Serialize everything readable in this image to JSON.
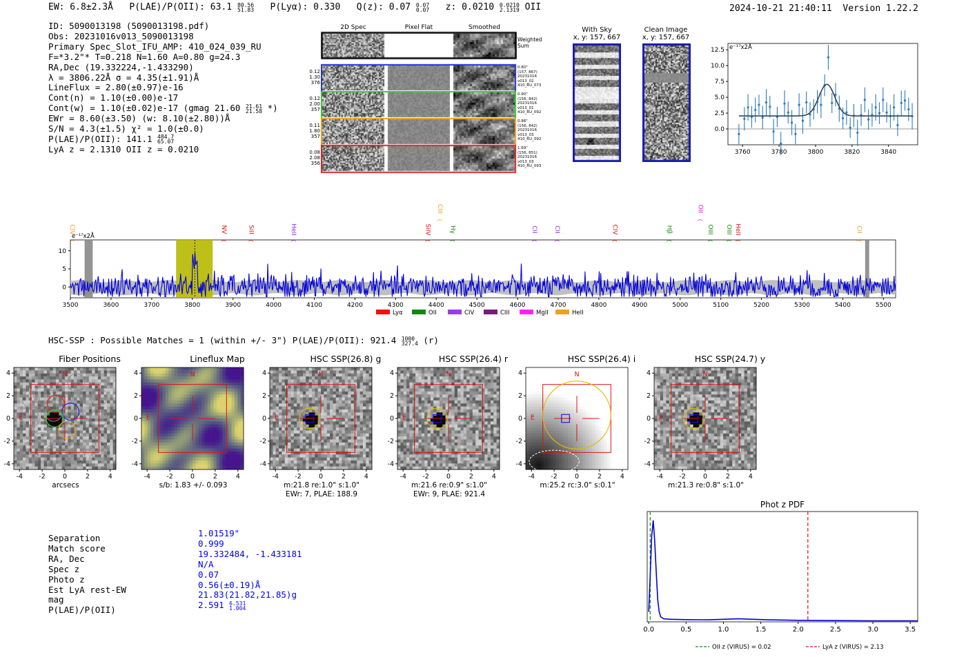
{
  "header": {
    "ew": "EW: 6.8±2.3Å",
    "plae_label": "P(LAE)/P(OII): 63.1",
    "plae_hi": "80.56",
    "plae_lo": "51.83",
    "plya": "P(Lyα): 0.330",
    "qz_label": "Q(z): 0.07",
    "qz_hi": "0.07",
    "qz_lo": "0.07",
    "z_label": "z: 0.0210",
    "z_hi": "0.0210",
    "z_lo": "2.1319",
    "z_line": "OII",
    "timestamp": "2024-10-21 21:40:11",
    "version": "Version 1.22.2"
  },
  "info": {
    "id": "ID: 5090013198 (5090013198.pdf)",
    "obs": "Obs: 20231016v013_5090013198",
    "primary": "Primary Spec_Slot_IFU_AMP: 410_024_039_RU",
    "params": "F=*3.2\"*  T=0.218  N=1.60  A=0.80  g=24.3",
    "radec": "RA,Dec (19.332224,-1.433290)",
    "lambda": "λ = 3806.22Å  σ = 4.35(±1.91)Å",
    "lineflux": "LineFlux = 2.80(±0.97)e-16",
    "contn": "Cont(n) = 1.10(±0.00)e-17",
    "contw_label": "Cont(w) = 1.10(±0.02)e-17 (gmag 21.60",
    "contw_hi": "21.61",
    "contw_lo": "21.58",
    "contw_end": "*)",
    "ewr": "EWr = 8.60(±3.50) (w: 8.10(±2.80))Å",
    "sn": "S/N = 4.3(±1.5)  χ² = 1.0(±0.0)",
    "plae_label": "P(LAE)/P(OII): 141.1",
    "plae_hi": "484.7",
    "plae_lo": "65.07",
    "lyaz": "LyA z = 2.1310  OII z = 0.0210"
  },
  "spec2d": {
    "col_titles": [
      "2D Spec",
      "Pixel Flat",
      "Smoothed"
    ],
    "weighted_label": "Weighted Sum",
    "rows": [
      {
        "left": [
          "0.12",
          "1.30",
          "376"
        ],
        "right": [
          "0.80\"",
          "(157, 867)",
          "20231016",
          "v013_02",
          "410_RU_073"
        ],
        "color": "#2233cc"
      },
      {
        "left": [
          "0.12",
          "2.00",
          "357"
        ],
        "right": [
          "0.90\"",
          "(156, 842)",
          "20231016",
          "v013_01",
          "410_RU_092"
        ],
        "color": "#33cc33"
      },
      {
        "left": [
          "0.11",
          "1.80",
          "357"
        ],
        "right": [
          "0.86\"",
          "(156, 842)",
          "20231016",
          "v013_03",
          "410_RU_092"
        ],
        "color": "#f0a020"
      },
      {
        "left": [
          "0.08",
          "2.08",
          "356"
        ],
        "right": [
          "1.69\"",
          "(156, 851)",
          "20231016",
          "v013_03",
          "410_RU_093"
        ],
        "color": "#dd2222"
      }
    ]
  },
  "sky": {
    "with_sky_title": "With Sky",
    "clean_title": "Clean Image",
    "coord": "x, y: 157, 667"
  },
  "line_fit": {
    "unit": "e⁻¹⁷x2Å",
    "xticks": [
      3760,
      3780,
      3800,
      3820,
      3840
    ],
    "yticks": [
      0.0,
      2.5,
      5.0,
      7.5,
      10.0,
      12.5
    ],
    "xlim": [
      3752,
      3856
    ],
    "ylim": [
      -2.5,
      13.5
    ],
    "points_x": [
      3758,
      3761,
      3763,
      3765,
      3767,
      3769,
      3771,
      3773,
      3775,
      3777,
      3779,
      3781,
      3783,
      3785,
      3787,
      3789,
      3791,
      3793,
      3795,
      3797,
      3799,
      3801,
      3803,
      3805,
      3807,
      3809,
      3811,
      3813,
      3815,
      3817,
      3819,
      3821,
      3823,
      3825,
      3827,
      3829,
      3831,
      3833,
      3835,
      3837,
      3839,
      3841,
      3843,
      3845,
      3847,
      3849,
      3851,
      3853
    ],
    "points_y": [
      -0.8,
      1.6,
      3.4,
      1.9,
      3.0,
      3.8,
      1.8,
      4.2,
      3.5,
      -0.4,
      1.9,
      -2.3,
      4.0,
      2.6,
      1.0,
      -0.8,
      3.8,
      1.3,
      4.2,
      2.3,
      3.1,
      4.3,
      3.8,
      6.9,
      11.3,
      4.1,
      5.4,
      3.2,
      1.7,
      2.6,
      0.2,
      2.1,
      -0.6,
      2.2,
      4.6,
      1.5,
      2.2,
      3.4,
      2.5,
      4.6,
      2.6,
      2.0,
      3.4,
      0.6,
      4.1,
      4.5,
      3.1,
      2.0
    ],
    "fit_baseline": 2.05,
    "fit_amp": 5.0,
    "fit_center": 3806.2,
    "fit_sigma": 4.35
  },
  "full_spec": {
    "unit": "e⁻¹⁷x2Å",
    "xlim": [
      3500,
      5530
    ],
    "ylim": [
      -3,
      13
    ],
    "xticks": [
      3500,
      3600,
      3700,
      3800,
      3900,
      4000,
      4100,
      4200,
      4300,
      4400,
      4500,
      4600,
      4700,
      4800,
      4900,
      5000,
      5100,
      5200,
      5300,
      5400,
      5500
    ],
    "yticks": [
      0,
      5,
      10
    ],
    "highlight": [
      3760,
      3850
    ],
    "marker": 3806,
    "bad_regions": [
      [
        3535,
        3555
      ],
      [
        5455,
        5465
      ]
    ],
    "lines": [
      {
        "label": "CIV",
        "wave": 3495,
        "color": "#f0a020",
        "row": 1
      },
      {
        "label": "NV",
        "wave": 3868,
        "color": "#dd1111",
        "row": 1
      },
      {
        "label": "SiII",
        "wave": 3935,
        "color": "#dd1111",
        "row": 1
      },
      {
        "label": "HeII",
        "wave": 4040,
        "color": "#8a2be2",
        "row": 1
      },
      {
        "label": "SiIV",
        "wave": 4370,
        "color": "#dd1111",
        "row": 1
      },
      {
        "label": "CIII",
        "wave": 4400,
        "color": "#f0a020",
        "row": 0
      },
      {
        "label": "Hγ",
        "wave": 4431,
        "color": "#118811",
        "row": 1
      },
      {
        "label": "CII",
        "wave": 4632,
        "color": "#8a2be2",
        "row": 1
      },
      {
        "label": "CII",
        "wave": 4688,
        "color": "#8a2be2",
        "row": 1
      },
      {
        "label": "CIV",
        "wave": 4830,
        "color": "#dd1111",
        "row": 1
      },
      {
        "label": "Hβ",
        "wave": 4964,
        "color": "#118811",
        "row": 1
      },
      {
        "label": "OII",
        "wave": 5040,
        "color": "#dd11dd",
        "row": 0
      },
      {
        "label": "OIII",
        "wave": 5065,
        "color": "#118811",
        "row": 1
      },
      {
        "label": "OIII",
        "wave": 5111,
        "color": "#118811",
        "row": 1
      },
      {
        "label": "HeII",
        "wave": 5133,
        "color": "#dd1111",
        "row": 1
      },
      {
        "label": "CII",
        "wave": 5431,
        "color": "#f0a020",
        "row": 1
      }
    ],
    "legend": [
      {
        "label": "Lyα",
        "color": "#ee1111"
      },
      {
        "label": "OII",
        "color": "#118811"
      },
      {
        "label": "CIV",
        "color": "#9b3bf0"
      },
      {
        "label": "CIII",
        "color": "#7a1a7a"
      },
      {
        "label": "MgII",
        "color": "#ff22ff"
      },
      {
        "label": "HeII",
        "color": "#f0a020"
      }
    ]
  },
  "hsc": {
    "summary_label": "HSC-SSP : Possible Matches = 1 (within +/- 3\")  P(LAE)/P(OII): 921.4",
    "summary_hi": "1000",
    "summary_lo": "327.4",
    "summary_band": "(r)"
  },
  "cutouts": [
    {
      "title": "Fiber Positions",
      "sub1": "arcsecs",
      "sub2": ""
    },
    {
      "title": "Lineflux Map",
      "sub1": "s/b: 1.83 +/- 0.093",
      "sub2": ""
    },
    {
      "title": "HSC SSP(26.8) g",
      "sub1": "m:21.8  re:1.0\"  s:1.0\"",
      "sub2": "EWr: 7, PLAE: 188.9"
    },
    {
      "title": "HSC SSP(26.4) r",
      "sub1": "m:21.6  re:0.9\"  s:1.0\"",
      "sub2": "EWr: 9, PLAE: 921.4"
    },
    {
      "title": "HSC SSP(26.4) i",
      "sub1": "m:25.2 rc:3.0\"  s:0.1\"",
      "sub2": ""
    },
    {
      "title": "HSC SSP(24.7) y",
      "sub1": "m:21.3  re:0.8\"  s:1.0\"",
      "sub2": ""
    }
  ],
  "cutout_axes": {
    "ticks": [
      -4,
      -2,
      0,
      2,
      4
    ],
    "n_label": "N",
    "e_label": "E"
  },
  "match": {
    "labels": [
      "Separation",
      "Match score",
      "RA, Dec",
      "Spec z",
      "Photo z",
      "Est LyA rest-EW",
      "mag",
      "P(LAE)/P(OII)"
    ],
    "values": [
      "1.01519\"",
      "0.999",
      "19.332484, -1.433181",
      "N/A",
      "0.07",
      "0.56(±0.19)Å",
      "21.83(21.82,21.85)g",
      "2.591"
    ],
    "plae_hi": "6.531",
    "plae_lo": "1.004"
  },
  "photz": {
    "title": "Phot z PDF",
    "xticks": [
      0.0,
      0.5,
      1.0,
      1.5,
      2.0,
      2.5,
      3.0,
      3.5
    ],
    "xlim": [
      -0.02,
      3.6
    ],
    "oii_z": 0.02,
    "lya_z": 2.13,
    "legend_oii": "OII z (VIRUS) = 0.02",
    "legend_lya": "LyA z (VIRUS) = 2.13",
    "pdf_x": [
      0.0,
      0.02,
      0.04,
      0.06,
      0.08,
      0.1,
      0.12,
      0.14,
      0.16,
      0.2,
      0.3,
      0.5,
      0.8,
      1.0,
      1.2,
      1.4,
      1.6,
      2.0,
      2.5,
      3.0,
      3.5,
      3.6
    ],
    "pdf_y": [
      0.1,
      0.45,
      0.85,
      1.0,
      0.8,
      0.5,
      0.22,
      0.1,
      0.05,
      0.03,
      0.025,
      0.022,
      0.02,
      0.025,
      0.03,
      0.025,
      0.02,
      0.015,
      0.012,
      0.01,
      0.01,
      0.01
    ]
  }
}
